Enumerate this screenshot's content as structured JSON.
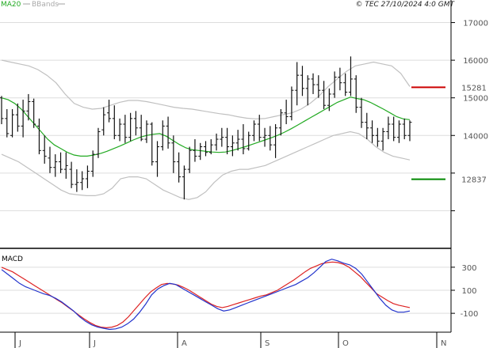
{
  "header": {
    "ma_label": "MA20",
    "bb_label": "BBands",
    "copyright": "© TEC 27/10/2024 4:0 GMT"
  },
  "colors": {
    "ma": "#22aa22",
    "bbands": "#c0c0c0",
    "price": "#111111",
    "resistance": "#cc0000",
    "support": "#008800",
    "macd": "#2233cc",
    "signal": "#dd2222",
    "grid": "#dddddd"
  },
  "chart_data": [
    {
      "type": "ohlc",
      "ylim": [
        11000,
        17600
      ],
      "y_ticks": [
        17000,
        16000,
        15000,
        14000,
        13000,
        12000
      ],
      "y_tick_labels": [
        "17000",
        "16000",
        "15000",
        "14000",
        "",
        ""
      ],
      "x_months": [
        "J",
        "J",
        "A",
        "S",
        "O",
        "N"
      ],
      "resistance": {
        "label": "15281",
        "value": 15281
      },
      "support": {
        "label": "12837",
        "value": 12837
      },
      "price_series": [
        [
          15000,
          15050,
          14300,
          14450
        ],
        [
          14450,
          14700,
          13950,
          14050
        ],
        [
          14000,
          14700,
          13950,
          14550
        ],
        [
          14550,
          14850,
          14100,
          14250
        ],
        [
          14250,
          14950,
          13950,
          14650
        ],
        [
          14650,
          15100,
          14400,
          14900
        ],
        [
          14900,
          14980,
          14200,
          14300
        ],
        [
          14250,
          14450,
          13500,
          13600
        ],
        [
          13600,
          14000,
          13250,
          13450
        ],
        [
          13400,
          13700,
          13000,
          13150
        ],
        [
          13150,
          13500,
          12900,
          13300
        ],
        [
          13300,
          13550,
          13000,
          13100
        ],
        [
          13100,
          13550,
          12850,
          13200
        ],
        [
          13100,
          13300,
          12600,
          12700
        ],
        [
          12700,
          13100,
          12500,
          12750
        ],
        [
          12750,
          13050,
          12550,
          12850
        ],
        [
          12850,
          13200,
          12600,
          13050
        ],
        [
          13050,
          13600,
          12900,
          13500
        ],
        [
          13500,
          14200,
          13400,
          14100
        ],
        [
          14150,
          14750,
          14000,
          14550
        ],
        [
          14600,
          14950,
          14350,
          14450
        ],
        [
          14450,
          14800,
          13900,
          14000
        ],
        [
          14000,
          14450,
          13850,
          14300
        ],
        [
          14300,
          14550,
          13800,
          13950
        ],
        [
          13950,
          14600,
          13850,
          14450
        ],
        [
          14450,
          14650,
          14000,
          14200
        ],
        [
          14200,
          14550,
          13850,
          13900
        ],
        [
          13900,
          14400,
          13800,
          14300
        ],
        [
          14300,
          14350,
          13200,
          13300
        ],
        [
          13300,
          13850,
          12900,
          13700
        ],
        [
          13700,
          14400,
          13600,
          14250
        ],
        [
          14250,
          14500,
          13650,
          13800
        ],
        [
          13800,
          14000,
          13000,
          13300
        ],
        [
          13300,
          13550,
          12750,
          12900
        ],
        [
          12900,
          13200,
          12300,
          13100
        ],
        [
          13100,
          13700,
          13000,
          13600
        ],
        [
          13600,
          13900,
          13300,
          13450
        ],
        [
          13450,
          13800,
          13350,
          13700
        ],
        [
          13700,
          13850,
          13450,
          13550
        ],
        [
          13550,
          13900,
          13500,
          13750
        ],
        [
          13750,
          14050,
          13600,
          13900
        ],
        [
          13900,
          14200,
          13700,
          13950
        ],
        [
          13950,
          14200,
          13500,
          13700
        ],
        [
          13700,
          14000,
          13450,
          13800
        ],
        [
          13800,
          14150,
          13600,
          13900
        ],
        [
          13900,
          14300,
          13500,
          13650
        ],
        [
          13650,
          14100,
          13600,
          14000
        ],
        [
          14000,
          14400,
          13850,
          14300
        ],
        [
          14300,
          14550,
          13850,
          13950
        ],
        [
          13950,
          14200,
          13700,
          14000
        ],
        [
          14000,
          14250,
          13600,
          13750
        ],
        [
          13750,
          14300,
          13400,
          14200
        ],
        [
          14200,
          14700,
          14000,
          14600
        ],
        [
          14600,
          14950,
          14300,
          14500
        ],
        [
          14500,
          15300,
          14400,
          15200
        ],
        [
          15200,
          15950,
          14800,
          15600
        ],
        [
          15600,
          15850,
          15050,
          15250
        ],
        [
          15250,
          15600,
          14800,
          15500
        ],
        [
          15500,
          15650,
          15100,
          15350
        ],
        [
          15350,
          15600,
          15000,
          15200
        ],
        [
          15200,
          15450,
          14700,
          14800
        ],
        [
          14800,
          15250,
          14650,
          15100
        ],
        [
          15100,
          15700,
          15000,
          15550
        ],
        [
          15550,
          15800,
          15200,
          15400
        ],
        [
          15400,
          15650,
          15050,
          15150
        ],
        [
          15150,
          16100,
          15050,
          15500
        ],
        [
          15500,
          15600,
          14600,
          14750
        ],
        [
          14750,
          15000,
          14200,
          14350
        ],
        [
          14350,
          14600,
          13900,
          14200
        ],
        [
          14200,
          14400,
          13800,
          14000
        ],
        [
          14000,
          14200,
          13700,
          13850
        ],
        [
          13850,
          14200,
          13600,
          14100
        ],
        [
          14100,
          14500,
          13900,
          14300
        ],
        [
          14300,
          14500,
          13850,
          13950
        ],
        [
          13950,
          14400,
          13800,
          14300
        ],
        [
          14300,
          14450,
          13900,
          14000
        ],
        [
          14000,
          14400,
          13850,
          14350
        ]
      ],
      "ma20": [
        15000,
        14950,
        14850,
        14700,
        14500,
        14300,
        14100,
        13900,
        13750,
        13650,
        13550,
        13480,
        13450,
        13450,
        13480,
        13520,
        13580,
        13650,
        13720,
        13800,
        13880,
        13950,
        14000,
        14030,
        14050,
        13980,
        13870,
        13760,
        13670,
        13620,
        13600,
        13580,
        13560,
        13550,
        13560,
        13600,
        13650,
        13700,
        13760,
        13820,
        13880,
        13940,
        14010,
        14090,
        14180,
        14280,
        14380,
        14480,
        14580,
        14680,
        14780,
        14880,
        14950,
        15020,
        14980,
        14950,
        14880,
        14790,
        14700,
        14600,
        14500,
        14440,
        14420
      ],
      "bb_upper": [
        16000,
        15950,
        15900,
        15850,
        15750,
        15600,
        15400,
        15100,
        14850,
        14750,
        14700,
        14720,
        14800,
        14880,
        14930,
        14930,
        14900,
        14850,
        14800,
        14750,
        14720,
        14700,
        14660,
        14620,
        14580,
        14550,
        14500,
        14460,
        14440,
        14450,
        14500,
        14550,
        14600,
        14700,
        14850,
        15050,
        15300,
        15500,
        15700,
        15850,
        15900,
        15950,
        15900,
        15850,
        15650,
        15300
      ],
      "bb_lower": [
        13500,
        13400,
        13300,
        13150,
        13000,
        12850,
        12700,
        12550,
        12450,
        12420,
        12400,
        12400,
        12450,
        12600,
        12850,
        12900,
        12900,
        12850,
        12700,
        12550,
        12450,
        12350,
        12300,
        12350,
        12500,
        12750,
        12950,
        13050,
        13100,
        13100,
        13150,
        13200,
        13300,
        13400,
        13500,
        13600,
        13700,
        13800,
        13900,
        14000,
        14050,
        14100,
        14050,
        13900,
        13700,
        13550,
        13450,
        13400,
        13350
      ]
    },
    {
      "type": "line",
      "title": "MACD",
      "ylim": [
        -250,
        450
      ],
      "y_ticks": [
        300,
        100,
        -100
      ],
      "y_tick_labels": [
        "300",
        "100",
        "-100"
      ],
      "macd": [
        280,
        240,
        200,
        160,
        130,
        110,
        90,
        70,
        55,
        30,
        0,
        -40,
        -80,
        -130,
        -170,
        -200,
        -220,
        -230,
        -240,
        -235,
        -220,
        -190,
        -150,
        -90,
        -20,
        60,
        110,
        140,
        160,
        150,
        120,
        90,
        60,
        30,
        0,
        -30,
        -60,
        -80,
        -70,
        -50,
        -30,
        -10,
        10,
        30,
        50,
        70,
        90,
        110,
        130,
        150,
        180,
        210,
        250,
        300,
        350,
        370,
        355,
        335,
        320,
        290,
        240,
        170,
        100,
        30,
        -30,
        -70,
        -90,
        -90,
        -80
      ],
      "signal": [
        300,
        280,
        260,
        230,
        200,
        170,
        140,
        110,
        80,
        50,
        20,
        -10,
        -45,
        -80,
        -115,
        -150,
        -180,
        -205,
        -220,
        -225,
        -220,
        -205,
        -175,
        -130,
        -75,
        -20,
        35,
        85,
        120,
        150,
        160,
        155,
        145,
        125,
        100,
        70,
        40,
        10,
        -20,
        -40,
        -50,
        -40,
        -25,
        -10,
        5,
        20,
        35,
        50,
        60,
        80,
        100,
        130,
        160,
        190,
        225,
        260,
        290,
        310,
        330,
        340,
        345,
        340,
        325,
        300,
        260,
        220,
        170,
        120,
        70,
        40,
        10,
        -15,
        -30,
        -40,
        -50
      ]
    }
  ]
}
